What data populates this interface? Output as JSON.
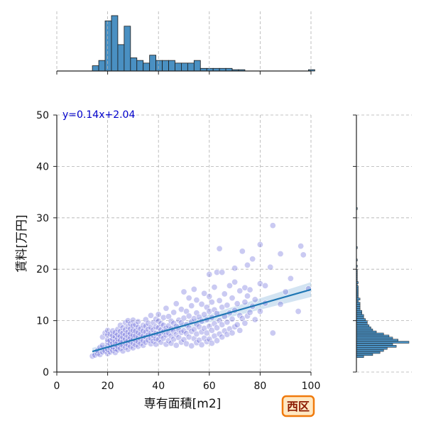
{
  "chart_data": {
    "type": "scatter",
    "title": "",
    "xlabel": "専有面積[m2]",
    "ylabel": "賃料[万円]",
    "xlim": [
      0,
      100
    ],
    "ylim": [
      0,
      50
    ],
    "x_ticks": [
      "0",
      "20",
      "40",
      "60",
      "80",
      "100"
    ],
    "y_ticks": [
      "0",
      "10",
      "20",
      "30",
      "40",
      "50"
    ],
    "grid": true,
    "annotation": "y=0.14x+2.04",
    "badge": "西区",
    "regression": {
      "slope": 0.14,
      "intercept": 2.04,
      "x_range": [
        14,
        100
      ]
    },
    "colors": {
      "points": "#5b5bd6",
      "points_dense": "#2a2aa8",
      "line": "#1f77b4",
      "band": "#aecde8",
      "hist": "#4a90c2",
      "grid": "#b0b0b0",
      "badge_bg": "#ffe9c4",
      "badge_border": "#f07a0c"
    },
    "series": [
      {
        "values": [
          [
            14,
            3.1
          ],
          [
            15,
            3.3
          ],
          [
            16,
            3.6
          ],
          [
            16,
            4.2
          ],
          [
            17,
            3.4
          ],
          [
            17,
            4.8
          ],
          [
            18,
            3.9
          ],
          [
            18,
            5.2
          ],
          [
            18,
            6.8
          ],
          [
            19,
            4.1
          ],
          [
            19,
            7.6
          ],
          [
            20,
            3.6
          ],
          [
            20,
            4.4
          ],
          [
            20,
            5.1
          ],
          [
            20,
            5.8
          ],
          [
            20,
            6.3
          ],
          [
            20,
            7.2
          ],
          [
            20,
            8.1
          ],
          [
            21,
            3.9
          ],
          [
            21,
            4.7
          ],
          [
            21,
            5.5
          ],
          [
            21,
            6.1
          ],
          [
            21,
            7.4
          ],
          [
            22,
            4.2
          ],
          [
            22,
            4.9
          ],
          [
            22,
            5.6
          ],
          [
            22,
            6.4
          ],
          [
            22,
            7.1
          ],
          [
            22,
            8.0
          ],
          [
            23,
            3.8
          ],
          [
            23,
            4.5
          ],
          [
            23,
            5.3
          ],
          [
            23,
            6.0
          ],
          [
            23,
            6.9
          ],
          [
            23,
            7.7
          ],
          [
            24,
            4.3
          ],
          [
            24,
            5.0
          ],
          [
            24,
            5.8
          ],
          [
            24,
            6.5
          ],
          [
            24,
            7.3
          ],
          [
            24,
            8.3
          ],
          [
            25,
            4.6
          ],
          [
            25,
            5.4
          ],
          [
            25,
            6.2
          ],
          [
            25,
            7.0
          ],
          [
            25,
            7.9
          ],
          [
            25,
            9.1
          ],
          [
            26,
            4.1
          ],
          [
            26,
            5.2
          ],
          [
            26,
            6.0
          ],
          [
            26,
            6.8
          ],
          [
            26,
            7.6
          ],
          [
            26,
            8.6
          ],
          [
            27,
            4.8
          ],
          [
            27,
            5.6
          ],
          [
            27,
            6.4
          ],
          [
            27,
            7.3
          ],
          [
            27,
            8.2
          ],
          [
            27,
            9.6
          ],
          [
            28,
            4.4
          ],
          [
            28,
            5.3
          ],
          [
            28,
            6.1
          ],
          [
            28,
            7.0
          ],
          [
            28,
            7.8
          ],
          [
            28,
            8.8
          ],
          [
            28,
            10.0
          ],
          [
            29,
            5.0
          ],
          [
            29,
            5.9
          ],
          [
            29,
            6.7
          ],
          [
            29,
            7.5
          ],
          [
            29,
            8.4
          ],
          [
            29,
            9.4
          ],
          [
            30,
            4.7
          ],
          [
            30,
            5.6
          ],
          [
            30,
            6.4
          ],
          [
            30,
            7.2
          ],
          [
            30,
            8.1
          ],
          [
            30,
            9.0
          ],
          [
            30,
            10.1
          ],
          [
            31,
            5.3
          ],
          [
            31,
            6.2
          ],
          [
            31,
            7.1
          ],
          [
            31,
            8.0
          ],
          [
            31,
            9.2
          ],
          [
            32,
            5.0
          ],
          [
            32,
            5.9
          ],
          [
            32,
            6.8
          ],
          [
            32,
            7.7
          ],
          [
            32,
            8.7
          ],
          [
            32,
            9.8
          ],
          [
            33,
            5.6
          ],
          [
            33,
            6.5
          ],
          [
            33,
            7.4
          ],
          [
            33,
            8.4
          ],
          [
            34,
            5.2
          ],
          [
            34,
            6.1
          ],
          [
            34,
            7.0
          ],
          [
            34,
            8.0
          ],
          [
            34,
            9.1
          ],
          [
            35,
            5.8
          ],
          [
            35,
            6.8
          ],
          [
            35,
            7.8
          ],
          [
            35,
            8.9
          ],
          [
            35,
            10.2
          ],
          [
            36,
            6.2
          ],
          [
            36,
            7.2
          ],
          [
            36,
            8.3
          ],
          [
            36,
            9.5
          ],
          [
            37,
            5.5
          ],
          [
            37,
            6.6
          ],
          [
            37,
            7.6
          ],
          [
            37,
            8.7
          ],
          [
            37,
            11.0
          ],
          [
            38,
            6.0
          ],
          [
            38,
            7.1
          ],
          [
            38,
            8.2
          ],
          [
            38,
            9.6
          ],
          [
            39,
            5.4
          ],
          [
            39,
            6.5
          ],
          [
            39,
            7.5
          ],
          [
            39,
            8.8
          ],
          [
            39,
            10.3
          ],
          [
            40,
            6.3
          ],
          [
            40,
            7.4
          ],
          [
            40,
            8.6
          ],
          [
            40,
            9.9
          ],
          [
            40,
            11.2
          ],
          [
            41,
            5.8
          ],
          [
            41,
            7.0
          ],
          [
            41,
            8.2
          ],
          [
            41,
            9.4
          ],
          [
            42,
            6.6
          ],
          [
            42,
            7.8
          ],
          [
            42,
            9.1
          ],
          [
            42,
            10.6
          ],
          [
            43,
            5.4
          ],
          [
            43,
            7.2
          ],
          [
            43,
            8.5
          ],
          [
            43,
            12.4
          ],
          [
            44,
            6.1
          ],
          [
            44,
            7.6
          ],
          [
            44,
            9.0
          ],
          [
            44,
            10.8
          ],
          [
            45,
            5.6
          ],
          [
            45,
            7.0
          ],
          [
            45,
            8.4
          ],
          [
            45,
            9.9
          ],
          [
            46,
            6.4
          ],
          [
            46,
            7.9
          ],
          [
            46,
            9.5
          ],
          [
            46,
            11.6
          ],
          [
            47,
            5.2
          ],
          [
            47,
            7.3
          ],
          [
            47,
            8.9
          ],
          [
            47,
            13.3
          ],
          [
            48,
            6.7
          ],
          [
            48,
            8.2
          ],
          [
            48,
            10.1
          ],
          [
            49,
            5.8
          ],
          [
            49,
            7.7
          ],
          [
            49,
            9.6
          ],
          [
            49,
            12.2
          ],
          [
            50,
            6.3
          ],
          [
            50,
            8.0
          ],
          [
            50,
            10.5
          ],
          [
            50,
            15.6
          ],
          [
            51,
            5.5
          ],
          [
            51,
            7.5
          ],
          [
            51,
            9.2
          ],
          [
            51,
            11.8
          ],
          [
            52,
            6.8
          ],
          [
            52,
            8.6
          ],
          [
            52,
            10.9
          ],
          [
            52,
            14.4
          ],
          [
            53,
            5.1
          ],
          [
            53,
            7.9
          ],
          [
            53,
            9.8
          ],
          [
            53,
            12.9
          ],
          [
            54,
            6.5
          ],
          [
            54,
            8.3
          ],
          [
            54,
            10.4
          ],
          [
            54,
            16.1
          ],
          [
            55,
            5.7
          ],
          [
            55,
            7.4
          ],
          [
            55,
            9.3
          ],
          [
            55,
            11.5
          ],
          [
            55,
            14.0
          ],
          [
            56,
            6.2
          ],
          [
            56,
            8.8
          ],
          [
            56,
            10.7
          ],
          [
            57,
            5.3
          ],
          [
            57,
            7.8
          ],
          [
            57,
            9.9
          ],
          [
            57,
            13.2
          ],
          [
            58,
            6.6
          ],
          [
            58,
            8.5
          ],
          [
            58,
            11.2
          ],
          [
            58,
            15.3
          ],
          [
            59,
            5.9
          ],
          [
            59,
            7.6
          ],
          [
            59,
            10.2
          ],
          [
            59,
            12.6
          ],
          [
            60,
            6.4
          ],
          [
            60,
            8.9
          ],
          [
            60,
            11.8
          ],
          [
            60,
            14.7
          ],
          [
            60,
            19.0
          ],
          [
            61,
            5.6
          ],
          [
            61,
            8.1
          ],
          [
            61,
            10.6
          ],
          [
            61,
            13.6
          ],
          [
            62,
            7.0
          ],
          [
            62,
            9.4
          ],
          [
            62,
            12.1
          ],
          [
            62,
            16.5
          ],
          [
            63,
            6.1
          ],
          [
            63,
            8.6
          ],
          [
            63,
            11.4
          ],
          [
            63,
            19.4
          ],
          [
            64,
            7.4
          ],
          [
            64,
            10.0
          ],
          [
            64,
            13.9
          ],
          [
            64,
            24.0
          ],
          [
            65,
            6.8
          ],
          [
            65,
            9.2
          ],
          [
            65,
            12.6
          ],
          [
            65,
            19.4
          ],
          [
            66,
            8.0
          ],
          [
            66,
            10.8
          ],
          [
            66,
            15.2
          ],
          [
            67,
            7.3
          ],
          [
            67,
            9.7
          ],
          [
            67,
            13.0
          ],
          [
            68,
            8.4
          ],
          [
            68,
            11.5
          ],
          [
            68,
            16.8
          ],
          [
            69,
            7.6
          ],
          [
            69,
            10.3
          ],
          [
            69,
            14.4
          ],
          [
            70,
            8.8
          ],
          [
            70,
            12.0
          ],
          [
            70,
            17.5
          ],
          [
            70,
            20.2
          ],
          [
            71,
            9.2
          ],
          [
            71,
            13.3
          ],
          [
            72,
            8.1
          ],
          [
            72,
            11.0
          ],
          [
            72,
            15.8
          ],
          [
            73,
            10.4
          ],
          [
            73,
            23.5
          ],
          [
            74,
            9.5
          ],
          [
            74,
            13.6
          ],
          [
            74,
            16.4
          ],
          [
            75,
            10.9
          ],
          [
            75,
            14.8
          ],
          [
            75,
            20.8
          ],
          [
            76,
            11.6
          ],
          [
            76,
            16.0
          ],
          [
            77,
            12.8
          ],
          [
            77,
            22.0
          ],
          [
            78,
            10.2
          ],
          [
            78,
            14.1
          ],
          [
            80,
            11.8
          ],
          [
            80,
            17.2
          ],
          [
            80,
            24.8
          ],
          [
            82,
            13.4
          ],
          [
            82,
            16.8
          ],
          [
            84,
            20.4
          ],
          [
            85,
            7.6
          ],
          [
            85,
            28.5
          ],
          [
            88,
            13.2
          ],
          [
            88,
            23.0
          ],
          [
            90,
            15.6
          ],
          [
            92,
            18.2
          ],
          [
            95,
            11.8
          ],
          [
            96,
            24.5
          ],
          [
            97,
            22.8
          ],
          [
            99,
            16.2
          ]
        ]
      }
    ],
    "x_hist": {
      "bin_width": 2.5,
      "start": 14,
      "counts": [
        2,
        4,
        19,
        21,
        10,
        17,
        5,
        4,
        3,
        6,
        4,
        4,
        4,
        3,
        3,
        3,
        4,
        1,
        1,
        1,
        1,
        1,
        0.5,
        0.5,
        0,
        0,
        0,
        0,
        0,
        0,
        0,
        0,
        0,
        0,
        0.5
      ]
    },
    "y_hist": {
      "bin_width": 0.4,
      "start": 2.8,
      "counts": [
        4,
        9,
        13,
        15,
        17,
        22,
        20,
        29,
        23,
        20,
        18,
        15,
        11,
        9,
        8,
        7,
        6,
        6,
        5,
        4,
        4,
        3,
        3,
        2,
        2,
        2,
        2,
        1,
        2,
        1,
        1,
        1,
        1,
        1,
        1,
        0.5,
        1,
        0.5,
        0.5,
        0.5,
        0.5,
        0.5,
        0.5,
        0,
        0.5,
        0,
        0,
        0.5,
        0,
        0,
        0,
        0,
        0,
        0.5,
        0,
        0,
        0,
        0,
        0,
        0,
        0,
        0,
        0,
        0,
        0,
        0,
        0,
        0,
        0,
        0,
        0,
        0,
        0.5
      ]
    }
  }
}
